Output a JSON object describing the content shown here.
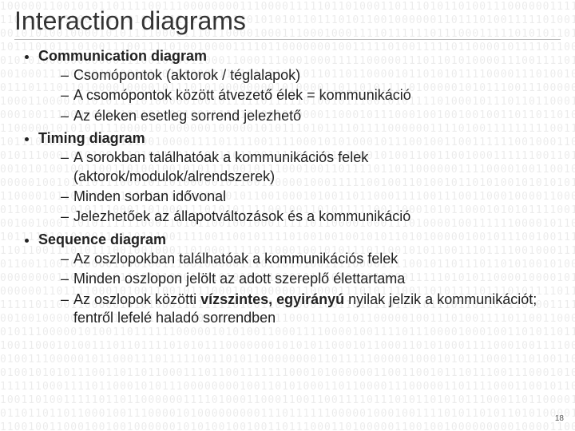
{
  "title": "Interaction diagrams",
  "bullets": [
    {
      "label": "Communication diagram",
      "items": [
        "Csomópontok (aktorok / téglalapok)",
        "A csomópontok között átvezető élek = kommunikáció",
        "Az éleken esetleg sorrend jelezhető"
      ]
    },
    {
      "label": "Timing diagram",
      "items": [
        "A sorokban találhatóak a kommunikációs felek (aktorok/modulok/alrendszerek)",
        "Minden sorban idővonal",
        "Jelezhetőek az állapotváltozások és a kommunikáció"
      ]
    },
    {
      "label": "Sequence diagram",
      "items": [
        "Az oszlopokban találhatóak a kommunikációs felek",
        "Minden oszlopon jelölt az adott szereplő élettartama",
        "Az oszlopok közötti <b>vízszintes, egyirányú</b>  nyilak jelzik a kommunikációt; fentről lefelé haladó sorrendben"
      ]
    }
  ],
  "page_number": "18",
  "colors": {
    "text": "#222222",
    "title": "#333333",
    "binary": "rgba(0,0,0,0.08)",
    "bg": "#ffffff"
  },
  "fonts": {
    "title_size": 32,
    "body_size": 18
  }
}
